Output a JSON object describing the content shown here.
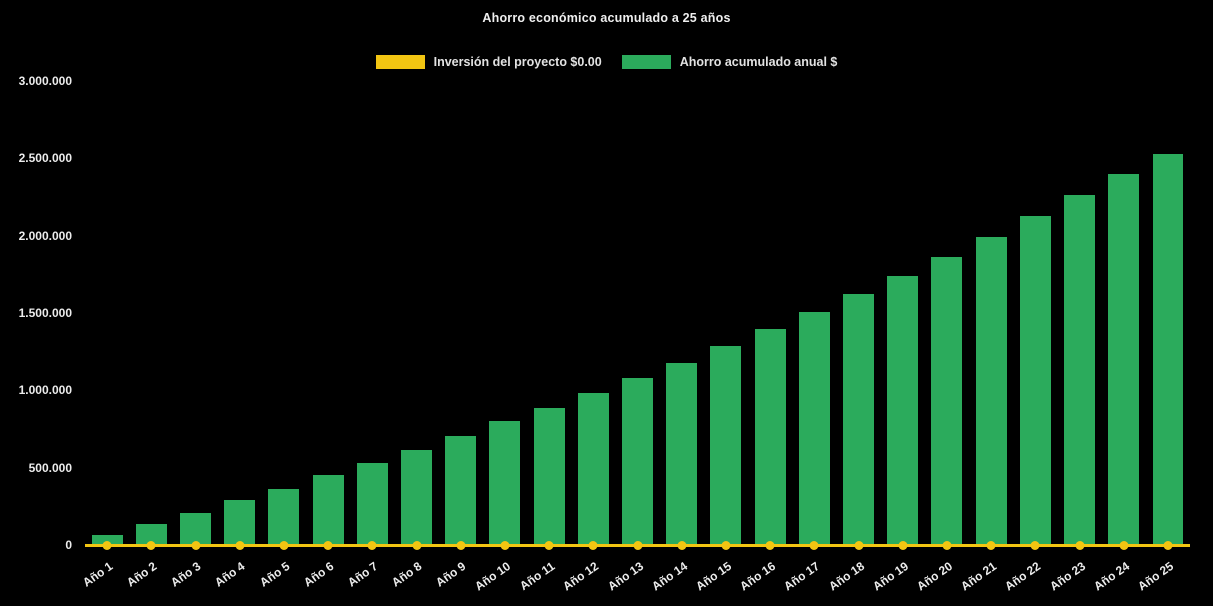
{
  "chart_data": {
    "type": "bar",
    "title": "Ahorro económico acumulado a 25 años",
    "categories": [
      "Año 1",
      "Año 2",
      "Año 3",
      "Año 4",
      "Año 5",
      "Año 6",
      "Año 7",
      "Año 8",
      "Año 9",
      "Año 10",
      "Año 11",
      "Año 12",
      "Año 13",
      "Año 14",
      "Año 15",
      "Año 16",
      "Año 17",
      "Año 18",
      "Año 19",
      "Año 20",
      "Año 21",
      "Año 22",
      "Año 23",
      "Año 24",
      "Año 25"
    ],
    "series": [
      {
        "name": "Inversión del proyecto $0.00",
        "type": "line",
        "color": "#f2c512",
        "values": [
          0,
          0,
          0,
          0,
          0,
          0,
          0,
          0,
          0,
          0,
          0,
          0,
          0,
          0,
          0,
          0,
          0,
          0,
          0,
          0,
          0,
          0,
          0,
          0,
          0
        ]
      },
      {
        "name": "Ahorro acumulado anual $",
        "type": "bar",
        "color": "#2bab5c",
        "values": [
          65000,
          135000,
          210000,
          290000,
          360000,
          450000,
          530000,
          615000,
          705000,
          800000,
          885000,
          985000,
          1080000,
          1180000,
          1285000,
          1395000,
          1505000,
          1620000,
          1740000,
          1860000,
          1990000,
          2125000,
          2260000,
          2400000,
          2530000
        ]
      }
    ],
    "xlabel": "",
    "ylabel": "",
    "ylim": [
      0,
      3000000
    ],
    "yticks": [
      "0",
      "500.000",
      "1.000.000",
      "1.500.000",
      "2.000.000",
      "2.500.000",
      "3.000.000"
    ],
    "grid": false,
    "legend_position": "top",
    "background": "#000000",
    "text_color": "#ececec"
  }
}
